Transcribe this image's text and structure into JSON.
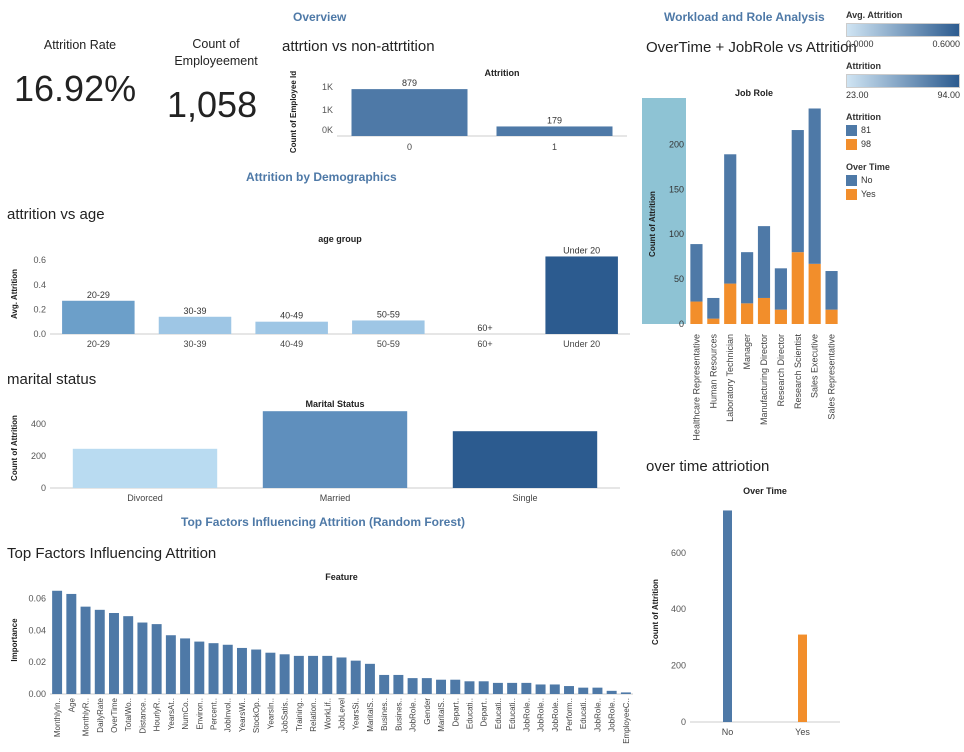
{
  "sections": {
    "overview": "Overview",
    "workload": "Workload and Role Analysis",
    "demographics": "Attrition by Demographics",
    "factors": "Top Factors Influencing Attrition (Random Forest)"
  },
  "kpis": {
    "attrition_rate_label": "Attrition Rate",
    "attrition_rate_value": "16.92%",
    "count_label": "Count of Employeement",
    "count_value": "1,058"
  },
  "sheets": {
    "attrition": "attrtion vs non-attrtition",
    "age": "attrition vs age",
    "marital": "marital status",
    "factors": "Top Factors Influencing Attrition",
    "overtime_role": "OverTime + JobRole vs Attrition",
    "overtime": "over time attriotion"
  },
  "legends": {
    "avg_attrition": {
      "title": "Avg. Attrition",
      "min": "0.0000",
      "max": "0.6000",
      "color_start": "#cfe4f3",
      "color_end": "#2c5b8f"
    },
    "attrition_range": {
      "title": "Attrition",
      "min": "23.00",
      "max": "94.00",
      "color_start": "#cfe4f3",
      "color_end": "#2c5b8f"
    },
    "attrition_cat": {
      "title": "Attrition",
      "items": [
        {
          "label": "81",
          "color": "#4e79a7"
        },
        {
          "label": "98",
          "color": "#f28e2b"
        }
      ]
    },
    "overtime_cat": {
      "title": "Over Time",
      "items": [
        {
          "label": "No",
          "color": "#4e79a7"
        },
        {
          "label": "Yes",
          "color": "#f28e2b"
        }
      ]
    }
  },
  "chart_data": [
    {
      "id": "attrition",
      "type": "bar",
      "title": "Attrition",
      "ylabel": "Count of Employee Id",
      "categories": [
        "0",
        "1"
      ],
      "values": [
        879,
        179
      ],
      "data_labels": [
        "879",
        "179"
      ],
      "y_ticks": [
        "1K",
        "1K",
        "0K"
      ],
      "colors": [
        "#4e79a7",
        "#4e79a7"
      ]
    },
    {
      "id": "age",
      "type": "bar",
      "title": "age group",
      "ylabel": "Avg. Attrition",
      "categories": [
        "20-29",
        "30-39",
        "40-49",
        "50-59",
        "60+",
        "Under 20"
      ],
      "values": [
        0.27,
        0.14,
        0.1,
        0.11,
        0.0,
        0.63
      ],
      "colors": [
        "#6c9fc9",
        "#9ec6e5",
        "#9ec6e5",
        "#9ec6e5",
        "#cfe4f3",
        "#2c5b8f"
      ],
      "ylim": [
        0,
        0.65
      ],
      "y_ticks": [
        0.0,
        0.2,
        0.4,
        0.6
      ],
      "y_tick_labels": [
        "0.0",
        "0.2",
        "0.4",
        "0.6"
      ]
    },
    {
      "id": "marital",
      "type": "bar",
      "title": "Marital Status",
      "ylabel": "Count of Attrition",
      "categories": [
        "Divorced",
        "Married",
        "Single"
      ],
      "values": [
        245,
        480,
        355
      ],
      "colors": [
        "#b9dbf1",
        "#5f8fbd",
        "#2c5b8f"
      ],
      "ylim": [
        0,
        500
      ],
      "y_ticks": [
        0,
        200,
        400
      ],
      "y_tick_labels": [
        "0",
        "200",
        "400"
      ]
    },
    {
      "id": "factors",
      "type": "bar",
      "title": "Feature",
      "ylabel": "Importance",
      "categories": [
        "MonthlyIn..",
        "Age",
        "MonthlyR..",
        "DailyRate",
        "OverTime",
        "TotalWo..",
        "Distance..",
        "HourlyR..",
        "YearsAt..",
        "NumCo..",
        "Environ..",
        "Percent..",
        "JobInvol..",
        "YearsWi..",
        "StockOp..",
        "YearsIn..",
        "JobSatis..",
        "Training..",
        "Relation..",
        "WorkLif..",
        "JobLevel",
        "YearsSi..",
        "MaritalS..",
        "Busines..",
        "Busines..",
        "JobRole..",
        "Gender",
        "MaritalS..",
        "Depart..",
        "Educati..",
        "Depart..",
        "Educati..",
        "Educati..",
        "JobRole..",
        "JobRole..",
        "JobRole..",
        "Perform..",
        "Educati..",
        "JobRole..",
        "JobRole..",
        "EmployeeC.."
      ],
      "values": [
        0.065,
        0.063,
        0.055,
        0.053,
        0.051,
        0.049,
        0.045,
        0.044,
        0.037,
        0.035,
        0.033,
        0.032,
        0.031,
        0.029,
        0.028,
        0.026,
        0.025,
        0.024,
        0.024,
        0.024,
        0.023,
        0.021,
        0.019,
        0.012,
        0.012,
        0.01,
        0.01,
        0.009,
        0.009,
        0.008,
        0.008,
        0.007,
        0.007,
        0.007,
        0.006,
        0.006,
        0.005,
        0.004,
        0.004,
        0.002,
        0.001
      ],
      "colors": [
        "#4e79a7"
      ],
      "ylim": [
        0,
        0.068
      ],
      "y_ticks": [
        0.0,
        0.02,
        0.04,
        0.06
      ],
      "y_tick_labels": [
        "0.00",
        "0.02",
        "0.04",
        "0.06"
      ]
    },
    {
      "id": "overtime_role",
      "type": "bar",
      "title": "Job Role",
      "ylabel": "Count of Attrition",
      "categories": [
        "Healthcare Representative",
        "Human Resources",
        "Laboratory Technician",
        "Manager",
        "Manufacturing Director",
        "Research Director",
        "Research Scientist",
        "Sales Executive",
        "Sales Representative"
      ],
      "series": [
        {
          "name": "No",
          "color": "#4e79a7",
          "values": [
            64,
            23,
            144,
            57,
            80,
            46,
            136,
            173,
            43
          ]
        },
        {
          "name": "Yes",
          "color": "#f28e2b",
          "values": [
            25,
            6,
            45,
            23,
            29,
            16,
            80,
            67,
            16
          ]
        }
      ],
      "ylim": [
        0,
        245
      ],
      "y_ticks": [
        0,
        50,
        100,
        150,
        200
      ],
      "y_tick_labels": [
        "0",
        "50",
        "100",
        "150",
        "200"
      ]
    },
    {
      "id": "overtime",
      "type": "bar",
      "title": "Over Time",
      "ylabel": "Count of Attrition",
      "categories": [
        "No",
        "Yes"
      ],
      "values": [
        750,
        310
      ],
      "colors": [
        "#4e79a7",
        "#f28e2b"
      ],
      "ylim": [
        0,
        780
      ],
      "y_ticks": [
        0,
        200,
        400,
        600
      ],
      "y_tick_labels": [
        "0",
        "200",
        "400",
        "600"
      ]
    }
  ]
}
